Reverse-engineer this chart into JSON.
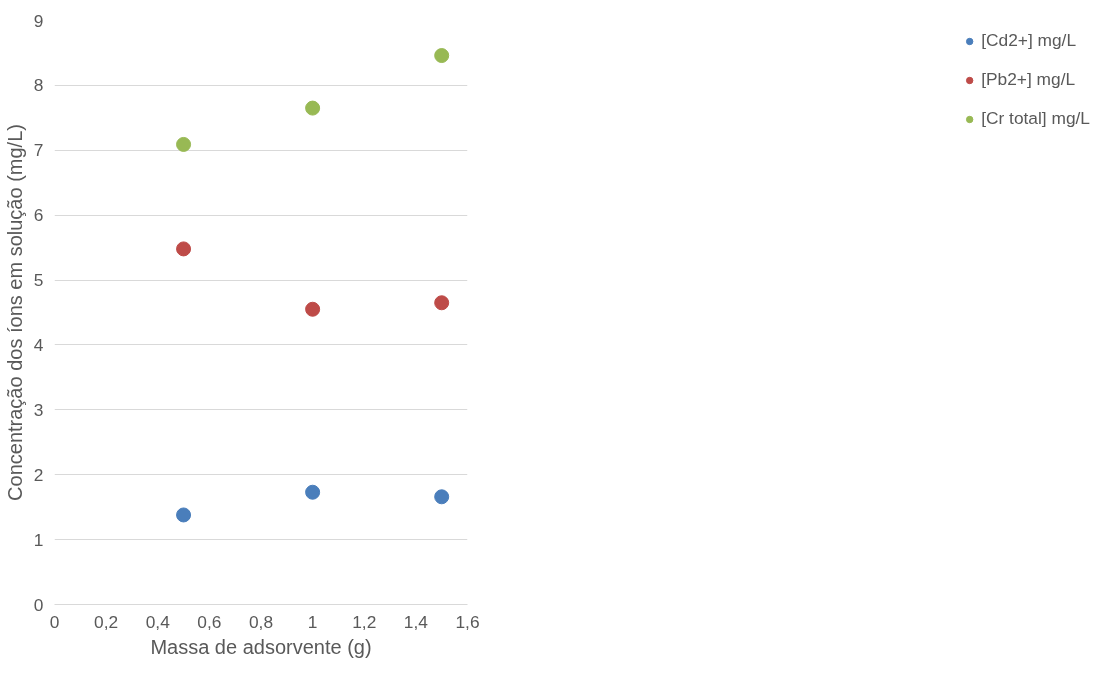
{
  "chart_data": {
    "type": "scatter",
    "xlabel": "Massa de adsorvente (g)",
    "ylabel": "Concentração dos íons em solução (mg/L)",
    "x": [
      0.5,
      1,
      1.5
    ],
    "series": [
      {
        "name": "[Cd2+] mg/L",
        "color": "#4a7ebb",
        "values": [
          1.38,
          1.73,
          1.66
        ]
      },
      {
        "name": "[Pb2+] mg/L",
        "color": "#be4b48",
        "values": [
          5.48,
          4.55,
          4.65
        ]
      },
      {
        "name": "[Cr total] mg/L",
        "color": "#98b954",
        "values": [
          7.09,
          7.65,
          8.46
        ]
      }
    ],
    "xlim": [
      0,
      1.6
    ],
    "xticks": [
      0,
      {
        "value": 0.2,
        "label": "0,2"
      },
      {
        "value": 0.4,
        "label": "0,4"
      },
      {
        "value": 0.6,
        "label": "0,6"
      },
      {
        "value": 0.8,
        "label": "0,8"
      },
      1,
      {
        "value": 1.2,
        "label": "1,2"
      },
      {
        "value": 1.4,
        "label": "1,4"
      },
      {
        "value": 1.6,
        "label": "1,6"
      }
    ],
    "ylim": [
      0,
      9
    ],
    "yticks": [
      0,
      1,
      2,
      3,
      4,
      5,
      6,
      7,
      8,
      9
    ],
    "grid": "y",
    "legend": "right",
    "marker": "circle"
  }
}
